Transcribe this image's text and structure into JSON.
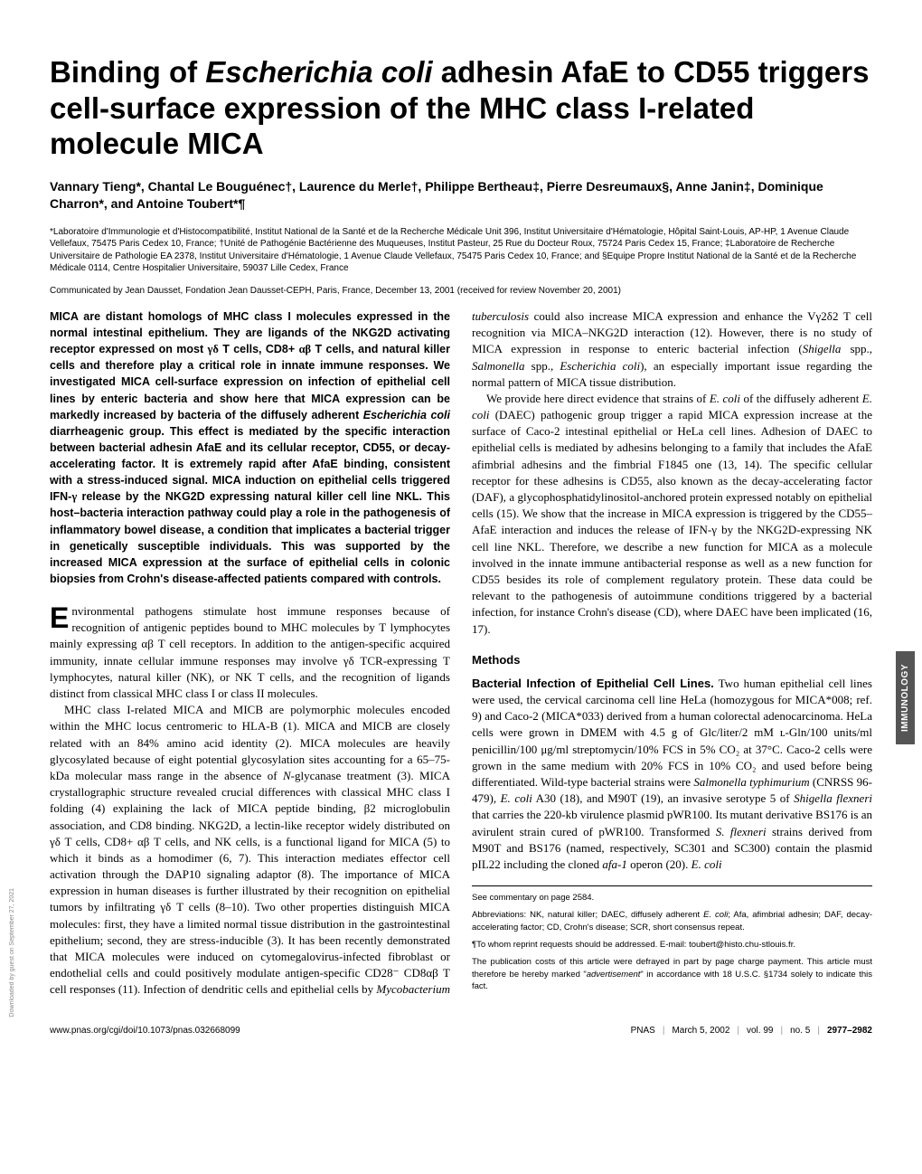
{
  "title_plain": "Binding of Escherichia coli adhesin AfaE to CD55 triggers cell-surface expression of the MHC class I-related molecule MICA",
  "authors": "Vannary Tieng*, Chantal Le Bouguénec†, Laurence du Merle†, Philippe Bertheau‡, Pierre Desreumaux§, Anne Janin‡, Dominique Charron*, and Antoine Toubert*¶",
  "affiliations": "*Laboratoire d'Immunologie et d'Histocompatibilité, Institut National de la Santé et de la Recherche Médicale Unit 396, Institut Universitaire d'Hématologie, Hôpital Saint-Louis, AP-HP, 1 Avenue Claude Vellefaux, 75475 Paris Cedex 10, France; †Unité de Pathogénie Bactérienne des Muqueuses, Institut Pasteur, 25 Rue du Docteur Roux, 75724 Paris Cedex 15, France; ‡Laboratoire de Recherche Universitaire de Pathologie EA 2378, Institut Universitaire d'Hématologie, 1 Avenue Claude Vellefaux, 75475 Paris Cedex 10, France; and §Equipe Propre Institut National de la Santé et de la Recherche Médicale 0114, Centre Hospitalier Universitaire, 59037 Lille Cedex, France",
  "communicated": "Communicated by Jean Dausset, Fondation Jean Dausset-CEPH, Paris, France, December 13, 2001 (received for review November 20, 2001)",
  "methods_heading": "Methods",
  "side_tab": "IMMUNOLOGY",
  "footer": {
    "left": "www.pnas.org/cgi/doi/10.1073/pnas.032668099",
    "right_journal": "PNAS",
    "right_date": "March 5, 2002",
    "right_vol": "vol. 99",
    "right_issue": "no. 5",
    "right_pages": "2977–2982"
  },
  "footnotes": {
    "commentary": "See commentary on page 2584.",
    "abbrev": "Abbreviations: NK, natural killer; DAEC, diffusely adherent E. coli; Afa, afimbrial adhesin; DAF, decay-accelerating factor; CD, Crohn's disease; SCR, short consensus repeat.",
    "correspondence": "¶To whom reprint requests should be addressed. E-mail: toubert@histo.chu-stlouis.fr.",
    "publication": "The publication costs of this article were defrayed in part by page charge payment. This article must therefore be hereby marked \"advertisement\" in accordance with 18 U.S.C. §1734 solely to indicate this fact."
  },
  "download_note": "Downloaded by guest on September 27, 2021"
}
